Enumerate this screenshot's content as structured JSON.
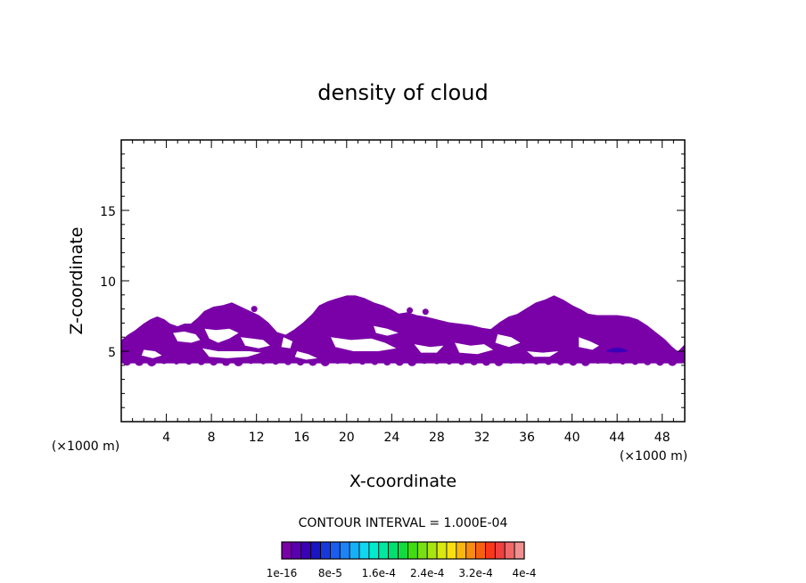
{
  "chart_data": {
    "type": "heatmap",
    "title": "density of cloud",
    "xlabel": "X-coordinate",
    "ylabel": "Z-coordinate",
    "x_unit_label": "(×1000 m)",
    "y_unit_label": "(×1000 m)",
    "xlim": [
      0,
      50
    ],
    "ylim": [
      0,
      20
    ],
    "x_ticks": [
      4,
      8,
      12,
      16,
      20,
      24,
      28,
      32,
      36,
      40,
      44,
      48
    ],
    "y_ticks": [
      5,
      10,
      15
    ],
    "contour_interval_text": "CONTOUR INTERVAL = 1.000E-04",
    "colorbar": {
      "colors": [
        "#7a00a8",
        "#5a00b0",
        "#3a00b8",
        "#1a14c4",
        "#1838dc",
        "#1c5cf0",
        "#1c84f8",
        "#14b0f8",
        "#10d8f0",
        "#00eccc",
        "#00e8a0",
        "#00e070",
        "#10dc40",
        "#40dc10",
        "#78e010",
        "#a8e410",
        "#d8e810",
        "#f8e010",
        "#f8b810",
        "#f88c10",
        "#f86010",
        "#f83818",
        "#f04040",
        "#f06868",
        "#f09090"
      ],
      "tick_labels": [
        "1e-16",
        "8e-5",
        "1.6e-4",
        "2.4e-4",
        "3.2e-4",
        "4e-4"
      ]
    },
    "cloud_regions": [
      {
        "level": "1e-16",
        "color": "#7a00a8",
        "x_range": [
          0,
          50
        ],
        "z_range": [
          4.2,
          8.9
        ]
      },
      {
        "level": "8e-5",
        "color": "#3a00b8",
        "x_range": [
          43,
          45
        ],
        "z_range": [
          4.8,
          5.2
        ]
      }
    ],
    "grid": false
  }
}
